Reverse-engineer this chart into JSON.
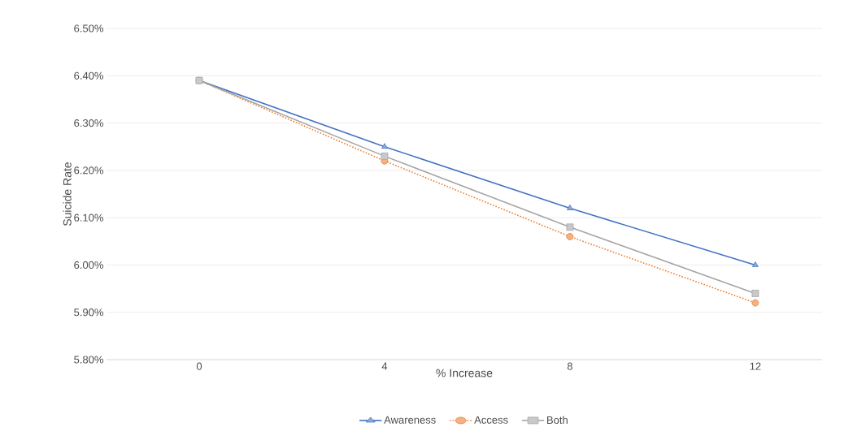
{
  "chart_data": {
    "type": "line",
    "xlabel": "% Increase",
    "ylabel": "Suicide Rate",
    "categories": [
      "0",
      "4",
      "8",
      "12"
    ],
    "series": [
      {
        "name": "Awareness",
        "color": "#4472c4",
        "values": [
          6.39,
          6.25,
          6.12,
          6.0
        ],
        "marker": "triangle",
        "line_style": "solid"
      },
      {
        "name": "Access",
        "color": "#ed7d31",
        "values": [
          6.39,
          6.22,
          6.06,
          5.92
        ],
        "marker": "circle",
        "line_style": "dotted"
      },
      {
        "name": "Both",
        "color": "#a5a5a5",
        "values": [
          6.39,
          6.23,
          6.08,
          5.94
        ],
        "marker": "square",
        "line_style": "solid"
      }
    ],
    "ylim": [
      5.8,
      6.5
    ],
    "yticks": [
      {
        "value": 5.8,
        "label": "5.80%"
      },
      {
        "value": 5.9,
        "label": "5.90%"
      },
      {
        "value": 6.0,
        "label": "6.00%"
      },
      {
        "value": 6.1,
        "label": "6.10%"
      },
      {
        "value": 6.2,
        "label": "6.20%"
      },
      {
        "value": 6.3,
        "label": "6.30%"
      },
      {
        "value": 6.4,
        "label": "6.40%"
      },
      {
        "value": 6.5,
        "label": "6.50%"
      }
    ],
    "grid": "y",
    "legend": "bottom"
  }
}
